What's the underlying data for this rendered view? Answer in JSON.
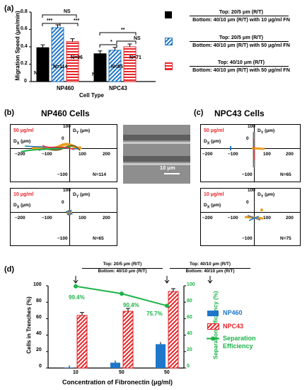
{
  "panel_a": {
    "letter": "(a)",
    "ylabel": "Migration Speed (μm/min)",
    "xlabel": "Cell Type",
    "yticks": [
      "0",
      "0.2",
      "0.4",
      "0.6",
      "0.8"
    ],
    "groups": [
      "NP460",
      "NPC43"
    ],
    "n_labels": [
      "N=65",
      "N=114",
      "N=96",
      "N=75",
      "N=65",
      "N=71"
    ],
    "sig": [
      "NS",
      "***",
      "***",
      "**",
      "*",
      "NS"
    ],
    "legend": [
      {
        "top": "Top: 20/5 μm (R/T)",
        "bottom": "Bottom: 40/10 μm (R/T) with 10 μg/ml FN",
        "color": "#000000",
        "pattern": "solid"
      },
      {
        "top": "Top: 20/5 μm (R/T)",
        "bottom": "Bottom: 40/10 μm (R/T) with 50 μg/ml FN",
        "color": "#1f77c9",
        "pattern": "diag"
      },
      {
        "top": "Top: 40/10 μm (R/T)",
        "bottom": "Bottom: 40/10 μm (R/T) with 50 μg/ml FN",
        "color": "#e8262a",
        "pattern": "horiz"
      }
    ]
  },
  "panel_b": {
    "letter": "(b)",
    "title": "NP460 Cells",
    "top_conc": "50 μg/ml",
    "bottom_conc": "10 μg/ml",
    "top_n": "N=114",
    "bottom_n": "N=65",
    "dy": "D",
    "dy_sub": "Y",
    "dy_unit": " (μm)",
    "dx": "D",
    "dx_sub": "X",
    "dx_unit": " (μm)",
    "scale": "10 μm",
    "ticks": {
      "m200": "−200",
      "m100": "−100",
      "p100": "100",
      "p200": "200",
      "zero": "0",
      "y100": "100",
      "ym100": "−100"
    }
  },
  "panel_c": {
    "letter": "(c)",
    "title": "NPC43 Cells",
    "top_conc": "50 μg/ml",
    "bottom_conc": "10 μg/ml",
    "top_n": "N=65",
    "bottom_n": "N=75"
  },
  "panel_d": {
    "letter": "(d)",
    "ylabel_left": "Cells in Trenches (%)",
    "ylabel_right": "Separation Efficiency (%)",
    "xlabel": "Concentration of Fibronectin (μg/ml)",
    "categories": [
      "10",
      "50",
      "50"
    ],
    "header_left_top": "Top: 20/5 μm (R/T)",
    "header_left_bottom": "Bottom: 40/10 μm (R/T)",
    "header_right_top": "Top: 40/10 μm (R/T)",
    "header_right_bottom": "Bottom: 40/10 μm (R/T)",
    "eff_labels": [
      "99.4%",
      "90.4%",
      "75.7%"
    ],
    "legend": [
      "NP460",
      "NPC43",
      "Separation",
      "Efficiency"
    ],
    "yticks": [
      "0",
      "20",
      "40",
      "60",
      "80",
      "100"
    ]
  },
  "chart_data": [
    {
      "type": "bar",
      "title": "",
      "xlabel": "Cell Type",
      "ylabel": "Migration Speed (μm/min)",
      "ylim": [
        0,
        0.8
      ],
      "categories": [
        "NP460",
        "NPC43"
      ],
      "series": [
        {
          "name": "Top: 20/5 μm (R/T) / Bottom: 40/10 μm (R/T) with 10 μg/ml FN",
          "values": [
            0.39,
            0.32
          ]
        },
        {
          "name": "Top: 20/5 μm (R/T) / Bottom: 40/10 μm (R/T) with 50 μg/ml FN",
          "values": [
            0.62,
            0.36
          ]
        },
        {
          "name": "Top: 40/10 μm (R/T) / Bottom: 40/10 μm (R/T) with 50 μg/ml FN",
          "values": [
            0.46,
            0.4
          ]
        }
      ]
    },
    {
      "type": "bar",
      "title": "",
      "xlabel": "Concentration of Fibronectin (μg/ml)",
      "ylabel": "Cells in Trenches (%)",
      "ylim": [
        0,
        100
      ],
      "categories": [
        "10",
        "50",
        "50"
      ],
      "series": [
        {
          "name": "NP460",
          "values": [
            0.5,
            6.5,
            29
          ]
        },
        {
          "name": "NPC43",
          "values": [
            64,
            69,
            93
          ]
        },
        {
          "name": "Separation Efficiency",
          "values": [
            99.4,
            90.4,
            75.7
          ]
        }
      ]
    }
  ]
}
